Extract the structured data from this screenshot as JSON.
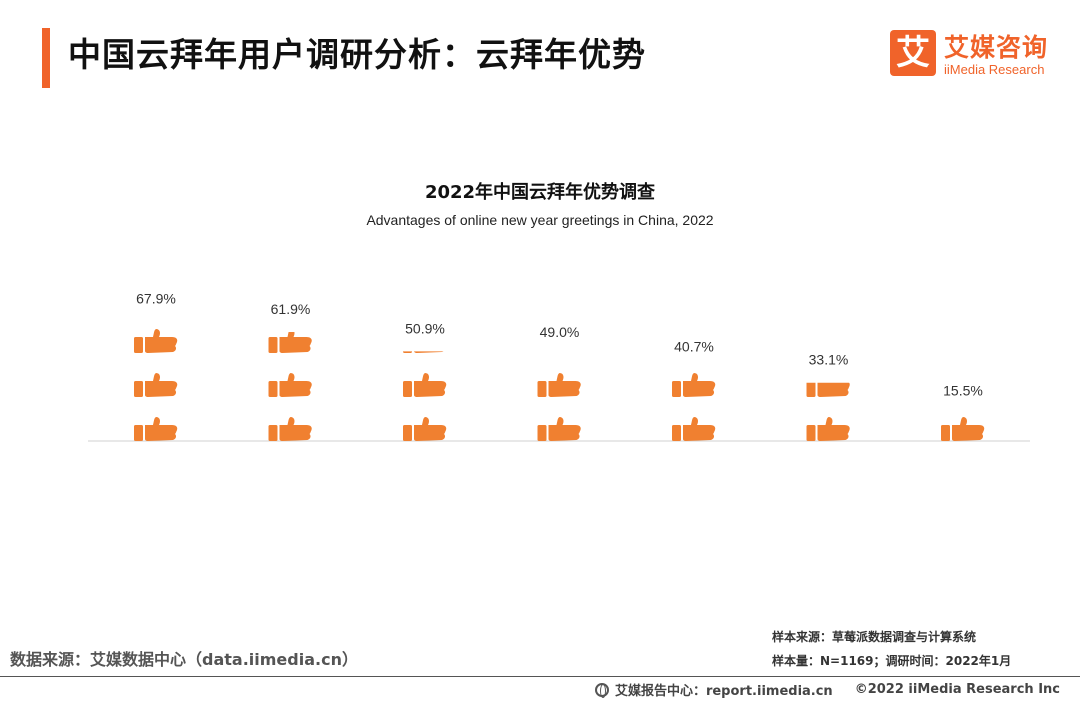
{
  "header": {
    "title": "中国云拜年用户调研分析：云拜年优势",
    "logo_mark": "艾",
    "logo_cn": "艾媒咨询",
    "logo_en": "iiMedia Research"
  },
  "colors": {
    "accent": "#f0632a",
    "icon": "#f08030",
    "axis": "#d0d0d0"
  },
  "chart_data": {
    "type": "bar",
    "title": "2022年中国云拜年优势调查",
    "subtitle": "Advantages of online new year greetings in China, 2022",
    "categories": [
      "",
      "",
      "",
      "",
      "",
      "",
      ""
    ],
    "values": [
      67.9,
      61.9,
      50.9,
      49.0,
      40.7,
      33.1,
      15.5
    ],
    "labels": [
      "67.9%",
      "61.9%",
      "50.9%",
      "49.0%",
      "40.7%",
      "33.1%",
      "15.5%"
    ],
    "ylim": [
      0,
      100
    ],
    "unit": "%",
    "icon": "thumbs-up-icon"
  },
  "footer": {
    "source": "数据来源：艾媒数据中心（data.iimedia.cn）",
    "sample_source": "样本来源：草莓派数据调查与计算系统",
    "sample_size": "样本量：N=1169；调研时间：2022年1月",
    "report_center": "艾媒报告中心：report.iimedia.cn",
    "copyright": "©2022  iiMedia Research Inc"
  }
}
